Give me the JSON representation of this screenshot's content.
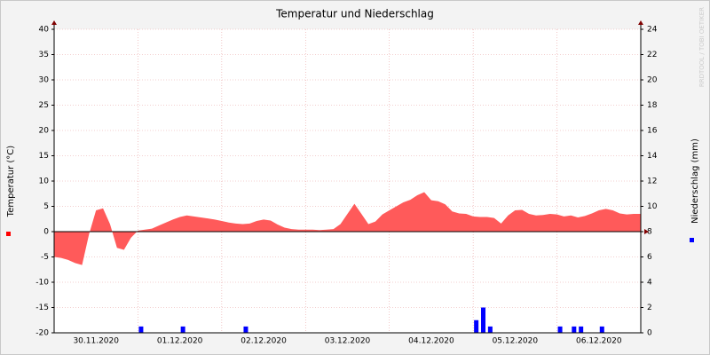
{
  "chart_data": {
    "type": "area-bar",
    "title": "Temperatur und Niederschlag",
    "y_label": "Temperatur (°C)",
    "y2_label": "Niederschlag (mm)",
    "watermark": "RRDTOOL / TOBI OETIKER",
    "categories": [
      "30.11.2020",
      "01.12.2020",
      "02.12.2020",
      "03.12.2020",
      "04.12.2020",
      "05.12.2020",
      "06.12.2020"
    ],
    "ylim": [
      -20,
      40
    ],
    "yticks": [
      -20,
      -15,
      -10,
      -5,
      0,
      5,
      10,
      15,
      20,
      25,
      30,
      35,
      40
    ],
    "y2lim": [
      0,
      24
    ],
    "y2ticks": [
      0,
      2,
      4,
      6,
      8,
      10,
      12,
      14,
      16,
      18,
      20,
      22,
      24
    ],
    "grid": true,
    "series": [
      {
        "name": "Temperatur",
        "color": "#ff5a5a",
        "kind": "area",
        "values": [
          [
            -5,
            -5.2,
            -5.6,
            -6.2,
            -6.6,
            -0.5,
            4.2,
            4.6,
            1.5,
            -3.2,
            -3.6,
            -1.2
          ],
          [
            0.2,
            0.4,
            0.6,
            1.2,
            1.8,
            2.4,
            2.9,
            3.2,
            3.0,
            2.8,
            2.6,
            2.4
          ],
          [
            2.1,
            1.8,
            1.6,
            1.5,
            1.6,
            2.1,
            2.4,
            2.2,
            1.4,
            0.8,
            0.5,
            0.4
          ],
          [
            0.4,
            0.4,
            0.3,
            0.4,
            0.5,
            1.5,
            3.5,
            5.5,
            3.5,
            1.5,
            2.0,
            3.4
          ],
          [
            4.2,
            5.0,
            5.8,
            6.3,
            7.2,
            7.8,
            6.2,
            6.0,
            5.4,
            4.0,
            3.6,
            3.5
          ],
          [
            3.0,
            2.9,
            2.9,
            2.7,
            1.6,
            3.2,
            4.2,
            4.3,
            3.5,
            3.2,
            3.3,
            3.5
          ],
          [
            3.4,
            3.0,
            3.2,
            2.8,
            3.1,
            3.6,
            4.2,
            4.5,
            4.2,
            3.6,
            3.4,
            3.5
          ]
        ]
      },
      {
        "name": "Niederschlag",
        "color": "#0000ff",
        "kind": "bar",
        "axis": "y2",
        "values": [
          [
            null,
            null,
            null,
            null,
            null,
            null,
            null,
            null,
            null,
            null,
            null,
            null
          ],
          [
            0.5,
            null,
            null,
            null,
            null,
            null,
            0.5,
            null,
            null,
            null,
            null,
            null
          ],
          [
            null,
            null,
            null,
            0.5,
            null,
            null,
            null,
            null,
            null,
            null,
            null,
            null
          ],
          [
            null,
            null,
            null,
            null,
            null,
            null,
            null,
            null,
            null,
            null,
            null,
            null
          ],
          [
            null,
            null,
            null,
            null,
            null,
            null,
            null,
            null,
            null,
            null,
            null,
            null
          ],
          [
            1.0,
            2.0,
            0.5,
            null,
            null,
            null,
            null,
            null,
            null,
            null,
            null,
            null
          ],
          [
            0.5,
            null,
            0.5,
            0.5,
            null,
            null,
            0.5,
            null,
            null,
            null,
            null,
            null
          ]
        ]
      }
    ]
  }
}
